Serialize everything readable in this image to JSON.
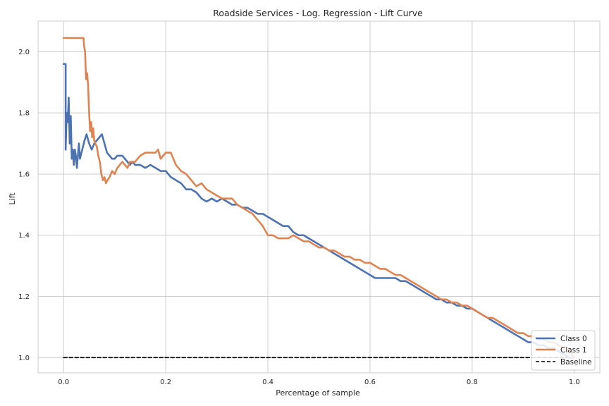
{
  "chart_data": {
    "type": "line",
    "title": "Roadside Services  - Log. Regression - Lift Curve",
    "xlabel": "Percentage of sample",
    "ylabel": "Lift",
    "xlim": [
      -0.05,
      1.05
    ],
    "ylim": [
      0.95,
      2.1
    ],
    "xticks": [
      0.0,
      0.2,
      0.4,
      0.6,
      0.8,
      1.0
    ],
    "xtick_labels": [
      "0.0",
      "0.2",
      "0.4",
      "0.6",
      "0.8",
      "1.0"
    ],
    "yticks": [
      1.0,
      1.2,
      1.4,
      1.6,
      1.8,
      2.0
    ],
    "ytick_labels": [
      "1.0",
      "1.2",
      "1.4",
      "1.6",
      "1.8",
      "2.0"
    ],
    "grid": true,
    "legend_position": "lower-right",
    "series": [
      {
        "name": "Class 0",
        "color": "#4c72b0",
        "x": [
          0.0,
          0.004,
          0.004,
          0.006,
          0.008,
          0.01,
          0.012,
          0.014,
          0.016,
          0.018,
          0.02,
          0.022,
          0.024,
          0.026,
          0.028,
          0.03,
          0.032,
          0.035,
          0.038,
          0.041,
          0.045,
          0.05,
          0.055,
          0.06,
          0.065,
          0.07,
          0.075,
          0.08,
          0.085,
          0.09,
          0.095,
          0.1,
          0.105,
          0.11,
          0.115,
          0.12,
          0.125,
          0.13,
          0.135,
          0.14,
          0.15,
          0.16,
          0.17,
          0.18,
          0.19,
          0.2,
          0.21,
          0.22,
          0.23,
          0.24,
          0.25,
          0.26,
          0.27,
          0.28,
          0.29,
          0.3,
          0.31,
          0.32,
          0.33,
          0.34,
          0.35,
          0.36,
          0.37,
          0.38,
          0.39,
          0.4,
          0.41,
          0.42,
          0.43,
          0.44,
          0.45,
          0.46,
          0.47,
          0.48,
          0.49,
          0.5,
          0.51,
          0.52,
          0.53,
          0.54,
          0.55,
          0.56,
          0.57,
          0.58,
          0.59,
          0.6,
          0.61,
          0.62,
          0.63,
          0.64,
          0.65,
          0.66,
          0.67,
          0.68,
          0.69,
          0.7,
          0.71,
          0.72,
          0.73,
          0.74,
          0.75,
          0.76,
          0.77,
          0.78,
          0.79,
          0.8,
          0.81,
          0.82,
          0.83,
          0.84,
          0.85,
          0.86,
          0.87,
          0.88,
          0.89,
          0.9,
          0.91,
          0.92,
          0.93,
          0.94,
          0.95,
          0.96,
          0.97,
          0.98,
          0.99,
          1.0
        ],
        "y": [
          1.96,
          1.96,
          1.68,
          1.8,
          1.77,
          1.85,
          1.7,
          1.79,
          1.65,
          1.68,
          1.63,
          1.68,
          1.66,
          1.62,
          1.66,
          1.7,
          1.65,
          1.67,
          1.69,
          1.71,
          1.73,
          1.7,
          1.68,
          1.7,
          1.71,
          1.72,
          1.73,
          1.7,
          1.67,
          1.66,
          1.65,
          1.65,
          1.66,
          1.66,
          1.66,
          1.65,
          1.64,
          1.63,
          1.64,
          1.63,
          1.63,
          1.62,
          1.63,
          1.62,
          1.61,
          1.61,
          1.59,
          1.58,
          1.57,
          1.55,
          1.55,
          1.54,
          1.52,
          1.51,
          1.52,
          1.51,
          1.52,
          1.51,
          1.5,
          1.5,
          1.49,
          1.49,
          1.48,
          1.47,
          1.47,
          1.46,
          1.45,
          1.44,
          1.43,
          1.43,
          1.41,
          1.4,
          1.4,
          1.39,
          1.38,
          1.37,
          1.36,
          1.35,
          1.34,
          1.33,
          1.32,
          1.31,
          1.3,
          1.29,
          1.28,
          1.27,
          1.26,
          1.26,
          1.26,
          1.26,
          1.26,
          1.25,
          1.25,
          1.24,
          1.23,
          1.22,
          1.21,
          1.2,
          1.19,
          1.19,
          1.18,
          1.18,
          1.17,
          1.17,
          1.16,
          1.16,
          1.15,
          1.14,
          1.13,
          1.12,
          1.11,
          1.1,
          1.09,
          1.08,
          1.07,
          1.06,
          1.05,
          1.05,
          1.04,
          1.04,
          1.03,
          1.03,
          1.02,
          1.01,
          1.0,
          1.0
        ]
      },
      {
        "name": "Class 1",
        "color": "#dd8452",
        "x": [
          0.0,
          0.005,
          0.01,
          0.015,
          0.02,
          0.025,
          0.03,
          0.035,
          0.039,
          0.04,
          0.042,
          0.044,
          0.046,
          0.048,
          0.05,
          0.052,
          0.054,
          0.056,
          0.058,
          0.06,
          0.062,
          0.065,
          0.068,
          0.071,
          0.074,
          0.077,
          0.08,
          0.083,
          0.086,
          0.09,
          0.095,
          0.1,
          0.105,
          0.11,
          0.115,
          0.12,
          0.125,
          0.13,
          0.14,
          0.15,
          0.16,
          0.17,
          0.18,
          0.185,
          0.19,
          0.2,
          0.21,
          0.22,
          0.23,
          0.24,
          0.25,
          0.26,
          0.27,
          0.28,
          0.29,
          0.3,
          0.31,
          0.32,
          0.33,
          0.34,
          0.35,
          0.36,
          0.37,
          0.38,
          0.39,
          0.4,
          0.41,
          0.42,
          0.43,
          0.44,
          0.45,
          0.46,
          0.47,
          0.48,
          0.49,
          0.5,
          0.51,
          0.52,
          0.53,
          0.54,
          0.55,
          0.56,
          0.57,
          0.58,
          0.59,
          0.6,
          0.61,
          0.62,
          0.63,
          0.64,
          0.65,
          0.66,
          0.67,
          0.68,
          0.69,
          0.7,
          0.71,
          0.72,
          0.73,
          0.74,
          0.75,
          0.76,
          0.77,
          0.78,
          0.79,
          0.8,
          0.81,
          0.82,
          0.83,
          0.84,
          0.85,
          0.86,
          0.87,
          0.88,
          0.89,
          0.9,
          0.91,
          0.92,
          0.93,
          0.94,
          0.95,
          0.96,
          0.97,
          0.98,
          0.99,
          1.0
        ],
        "y": [
          2.045,
          2.045,
          2.045,
          2.045,
          2.045,
          2.045,
          2.045,
          2.045,
          2.045,
          2.02,
          2.0,
          1.91,
          1.93,
          1.89,
          1.8,
          1.74,
          1.77,
          1.72,
          1.75,
          1.71,
          1.7,
          1.69,
          1.66,
          1.64,
          1.6,
          1.58,
          1.59,
          1.57,
          1.58,
          1.59,
          1.61,
          1.6,
          1.62,
          1.63,
          1.64,
          1.63,
          1.62,
          1.64,
          1.64,
          1.66,
          1.67,
          1.67,
          1.67,
          1.68,
          1.65,
          1.67,
          1.67,
          1.63,
          1.61,
          1.6,
          1.58,
          1.56,
          1.57,
          1.55,
          1.54,
          1.53,
          1.52,
          1.52,
          1.52,
          1.5,
          1.49,
          1.48,
          1.47,
          1.45,
          1.43,
          1.4,
          1.4,
          1.39,
          1.39,
          1.39,
          1.4,
          1.39,
          1.38,
          1.38,
          1.37,
          1.36,
          1.36,
          1.35,
          1.35,
          1.34,
          1.33,
          1.33,
          1.32,
          1.32,
          1.31,
          1.31,
          1.3,
          1.29,
          1.29,
          1.28,
          1.27,
          1.27,
          1.26,
          1.25,
          1.24,
          1.23,
          1.22,
          1.21,
          1.2,
          1.19,
          1.19,
          1.18,
          1.18,
          1.17,
          1.17,
          1.16,
          1.15,
          1.14,
          1.13,
          1.13,
          1.12,
          1.11,
          1.1,
          1.09,
          1.08,
          1.08,
          1.07,
          1.07,
          1.06,
          1.06,
          1.05,
          1.05,
          1.04,
          1.03,
          1.02,
          1.0
        ]
      },
      {
        "name": "Baseline",
        "color": "#000000",
        "dashed": true,
        "x": [
          0.0,
          1.0
        ],
        "y": [
          1.0,
          1.0
        ]
      }
    ]
  }
}
